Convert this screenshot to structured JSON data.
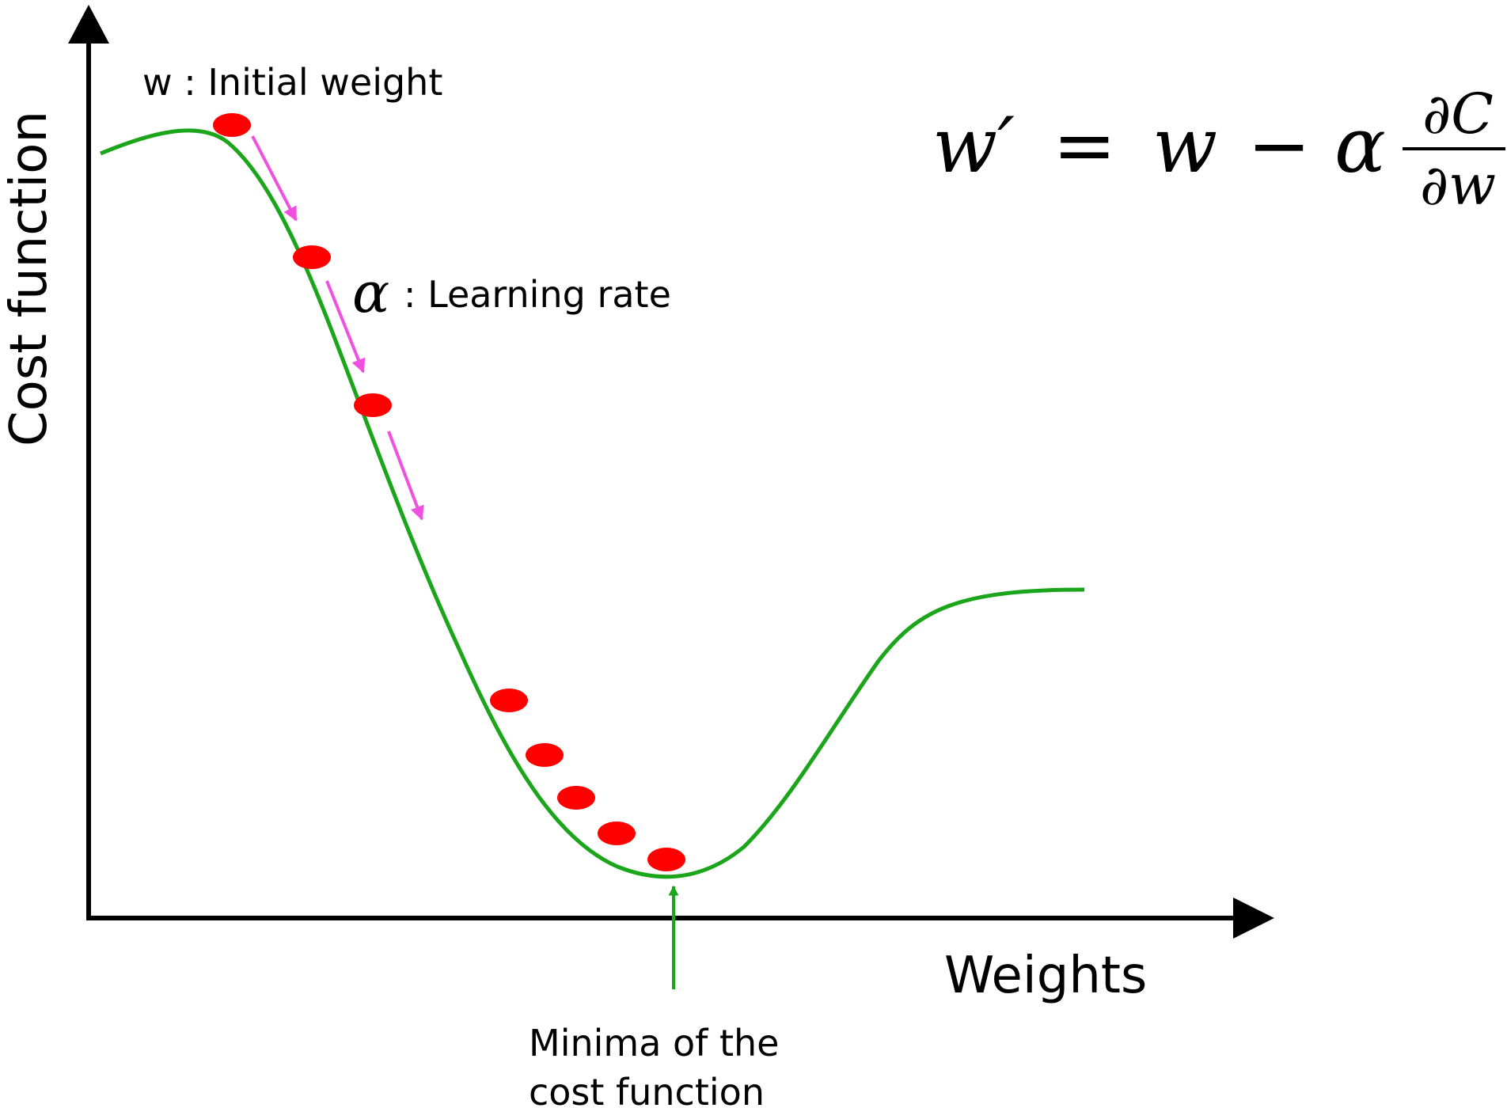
{
  "axes": {
    "y_label": "Cost function",
    "x_label": "Weights"
  },
  "annotations": {
    "initial_weight": "w : Initial weight",
    "learning_rate_symbol": "α",
    "learning_rate_text": ": Learning rate",
    "minima_line1": "Minima of the",
    "minima_line2": "cost function"
  },
  "formula": {
    "lhs": "w′",
    "equals": "=",
    "w": "w",
    "minus": "−",
    "alpha": "α",
    "numerator": "∂C",
    "denominator": "∂w"
  },
  "colors": {
    "curve": "#1aa51a",
    "points": "#ff0000",
    "step_arrows": "#f050e0",
    "minima_arrow": "#1aa51a",
    "axes": "#000000"
  },
  "descent_points_count": 8,
  "step_arrows_count": 3
}
